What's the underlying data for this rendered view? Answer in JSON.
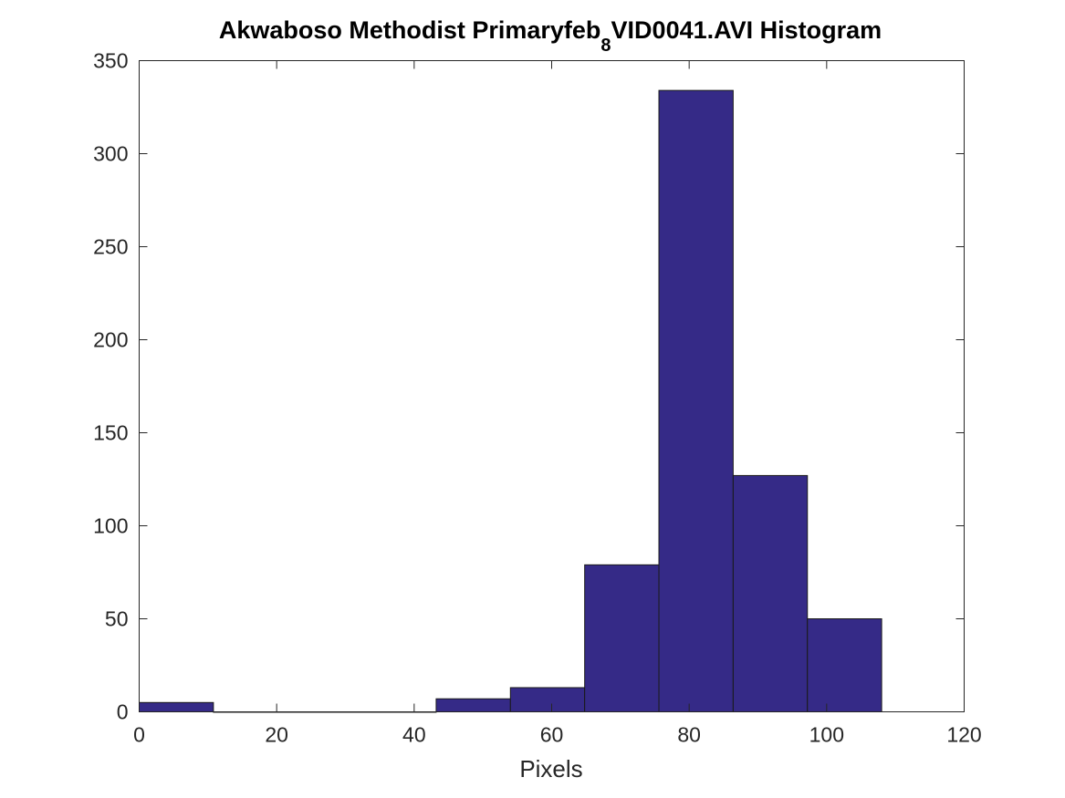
{
  "chart_data": {
    "type": "bar",
    "title_main": "Akwaboso Methodist Primaryfeb",
    "title_sub": "8",
    "title_tail": "VID0041.AVI Histogram",
    "xlabel": "Pixels",
    "ylabel": "",
    "xlim": [
      0,
      120
    ],
    "ylim": [
      0,
      350
    ],
    "xticks": [
      0,
      20,
      40,
      60,
      80,
      100,
      120
    ],
    "yticks": [
      0,
      50,
      100,
      150,
      200,
      250,
      300,
      350
    ],
    "xtick_labels": [
      "0",
      "20",
      "40",
      "60",
      "80",
      "100",
      "120"
    ],
    "ytick_labels": [
      "0",
      "50",
      "100",
      "150",
      "200",
      "250",
      "300",
      "350"
    ],
    "bin_edges": [
      0,
      10.8,
      21.6,
      32.4,
      43.2,
      54,
      64.8,
      75.6,
      86.4,
      97.2,
      108
    ],
    "values": [
      5,
      0,
      0,
      0,
      7,
      13,
      79,
      334,
      127,
      50
    ],
    "bar_color": "#352a87",
    "grid": false,
    "box": true
  }
}
